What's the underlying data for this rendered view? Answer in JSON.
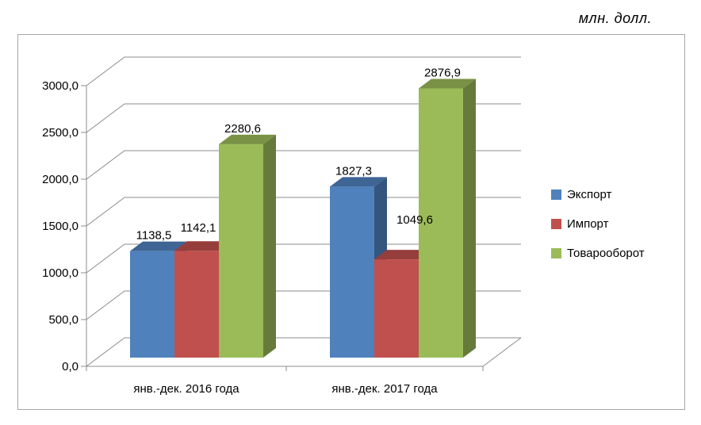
{
  "units_label": "млн. долл.",
  "chart_data": {
    "type": "bar",
    "style": "3d-clustered-column",
    "title": "",
    "units": "млн. долл.",
    "categories": [
      "янв.-дек. 2016 года",
      "янв.-дек. 2017 года"
    ],
    "series": [
      {
        "name": "Экспорт",
        "color": "#4F81BD",
        "values": [
          1138.5,
          1827.3
        ],
        "labels": [
          "1138,5",
          "1827,3"
        ]
      },
      {
        "name": "Импорт",
        "color": "#C0504D",
        "values": [
          1142.1,
          1049.6
        ],
        "labels": [
          "1142,1",
          "1049,6"
        ]
      },
      {
        "name": "Товарооборот",
        "color": "#9BBB59",
        "values": [
          2280.6,
          2876.9
        ],
        "labels": [
          "2280,6",
          "2876,9"
        ]
      }
    ],
    "y_axis": {
      "min": 0,
      "max": 3000,
      "step": 500,
      "tick_labels": [
        "0,0",
        "500,0",
        "1000,0",
        "1500,0",
        "2000,0",
        "2500,0",
        "3000,0"
      ]
    },
    "legend_position": "right",
    "grid": true
  },
  "colors": {
    "grid": "#8c8c8c",
    "border": "#a6a6a6",
    "text": "#1a1a1a"
  }
}
